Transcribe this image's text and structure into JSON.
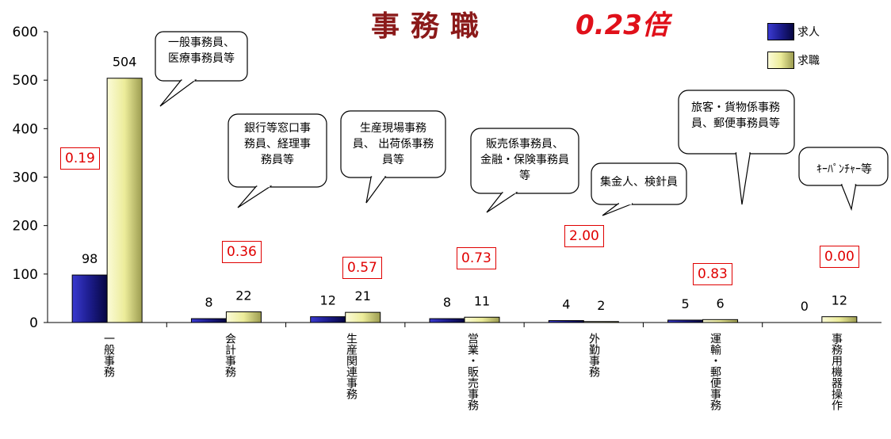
{
  "title": {
    "main": "事務職",
    "ratio": "0.23倍"
  },
  "legend": [
    {
      "label": "求人",
      "color": "#1c1c8c"
    },
    {
      "label": "求職",
      "color": "#ecec9a"
    }
  ],
  "chart_data": {
    "type": "bar",
    "title": "事務職 0.23倍",
    "ylim": [
      0,
      600
    ],
    "yticks": [
      "0",
      "100",
      "200",
      "300",
      "400",
      "500",
      "600"
    ],
    "categories": [
      "一般事務",
      "会計事務",
      "生産関連事務",
      "営業・販売事務",
      "外勤事務",
      "運輸・郵便事務",
      "事務用機器操作"
    ],
    "series": [
      {
        "name": "求人",
        "values": [
          98,
          8,
          12,
          8,
          4,
          5,
          0
        ]
      },
      {
        "name": "求職",
        "values": [
          504,
          22,
          21,
          11,
          2,
          6,
          12
        ]
      }
    ],
    "ratios": [
      "0.19",
      "0.36",
      "0.57",
      "0.73",
      "2.00",
      "0.83",
      "0.00"
    ],
    "callouts": [
      "一般事務員、\n医療事務員等",
      "銀行等窓口事\n務員、経理事\n務員等",
      "生産現場事務\n員、 出荷係事務\n員等",
      "販売係事務員、\n金融・保険事務員\n等",
      "集金人、検針員",
      "旅客・貨物係事務\n員、郵便事務員等",
      "ｷｰﾊﾟﾝﾁｬｰ等"
    ]
  }
}
